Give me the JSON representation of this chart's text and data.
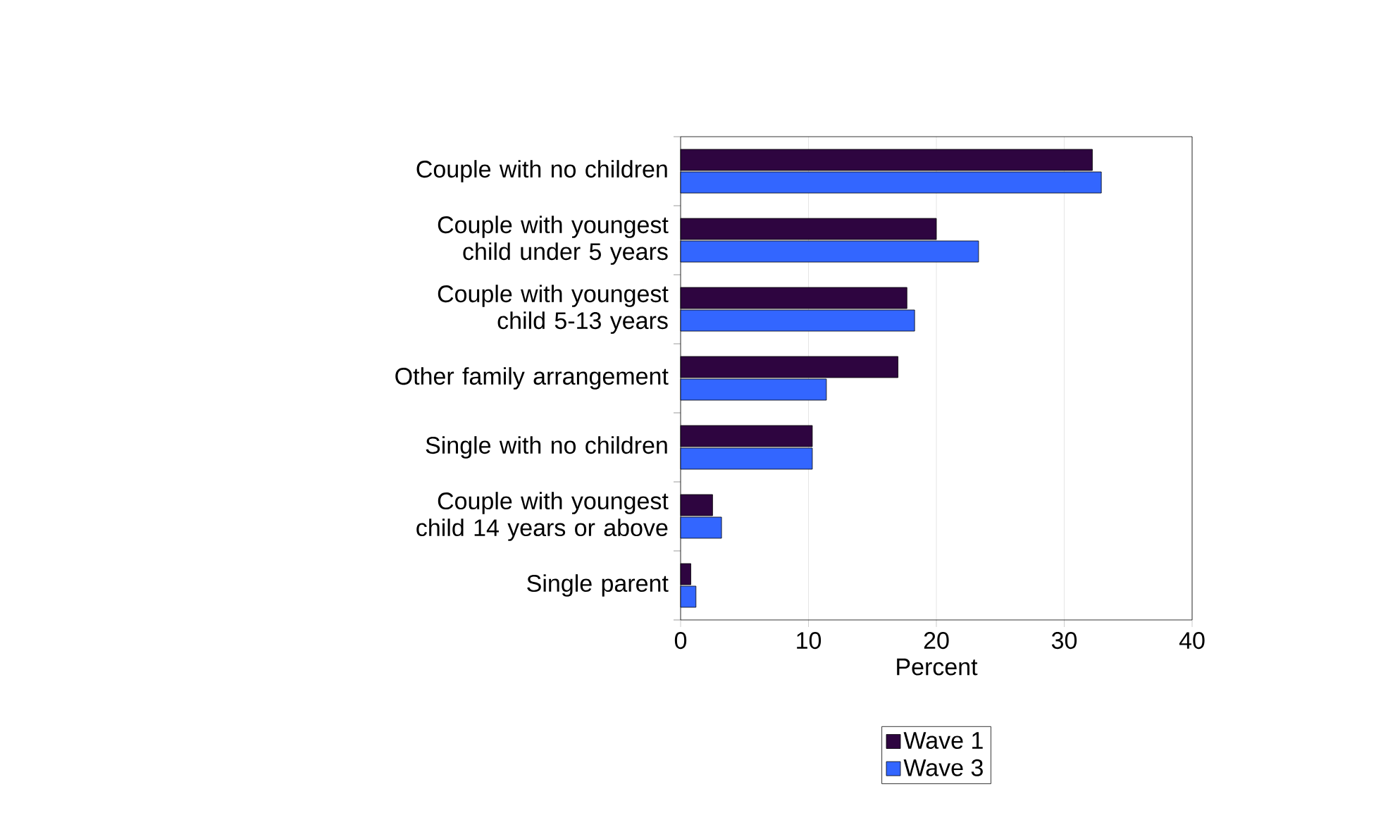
{
  "chart_data": {
    "type": "bar",
    "orientation": "horizontal",
    "xlabel": "Percent",
    "categories": [
      "Couple with no children",
      "Couple with youngest child under 5 years",
      "Couple with youngest child 5-13 years",
      "Other family arrangement",
      "Single with no children",
      "Couple with youngest child 14 years or above",
      "Single parent"
    ],
    "series": [
      {
        "name": "Wave 1",
        "color": "#2e0540",
        "values": [
          32.2,
          20.0,
          17.7,
          17.0,
          10.3,
          2.5,
          0.8
        ]
      },
      {
        "name": "Wave 3",
        "color": "#3366ff",
        "values": [
          32.9,
          23.3,
          18.3,
          11.4,
          10.3,
          3.2,
          1.2
        ]
      }
    ],
    "xlim": [
      0,
      40
    ],
    "xticks": [
      0,
      10,
      20,
      30,
      40
    ],
    "grid": "x",
    "legend": "bottom"
  }
}
